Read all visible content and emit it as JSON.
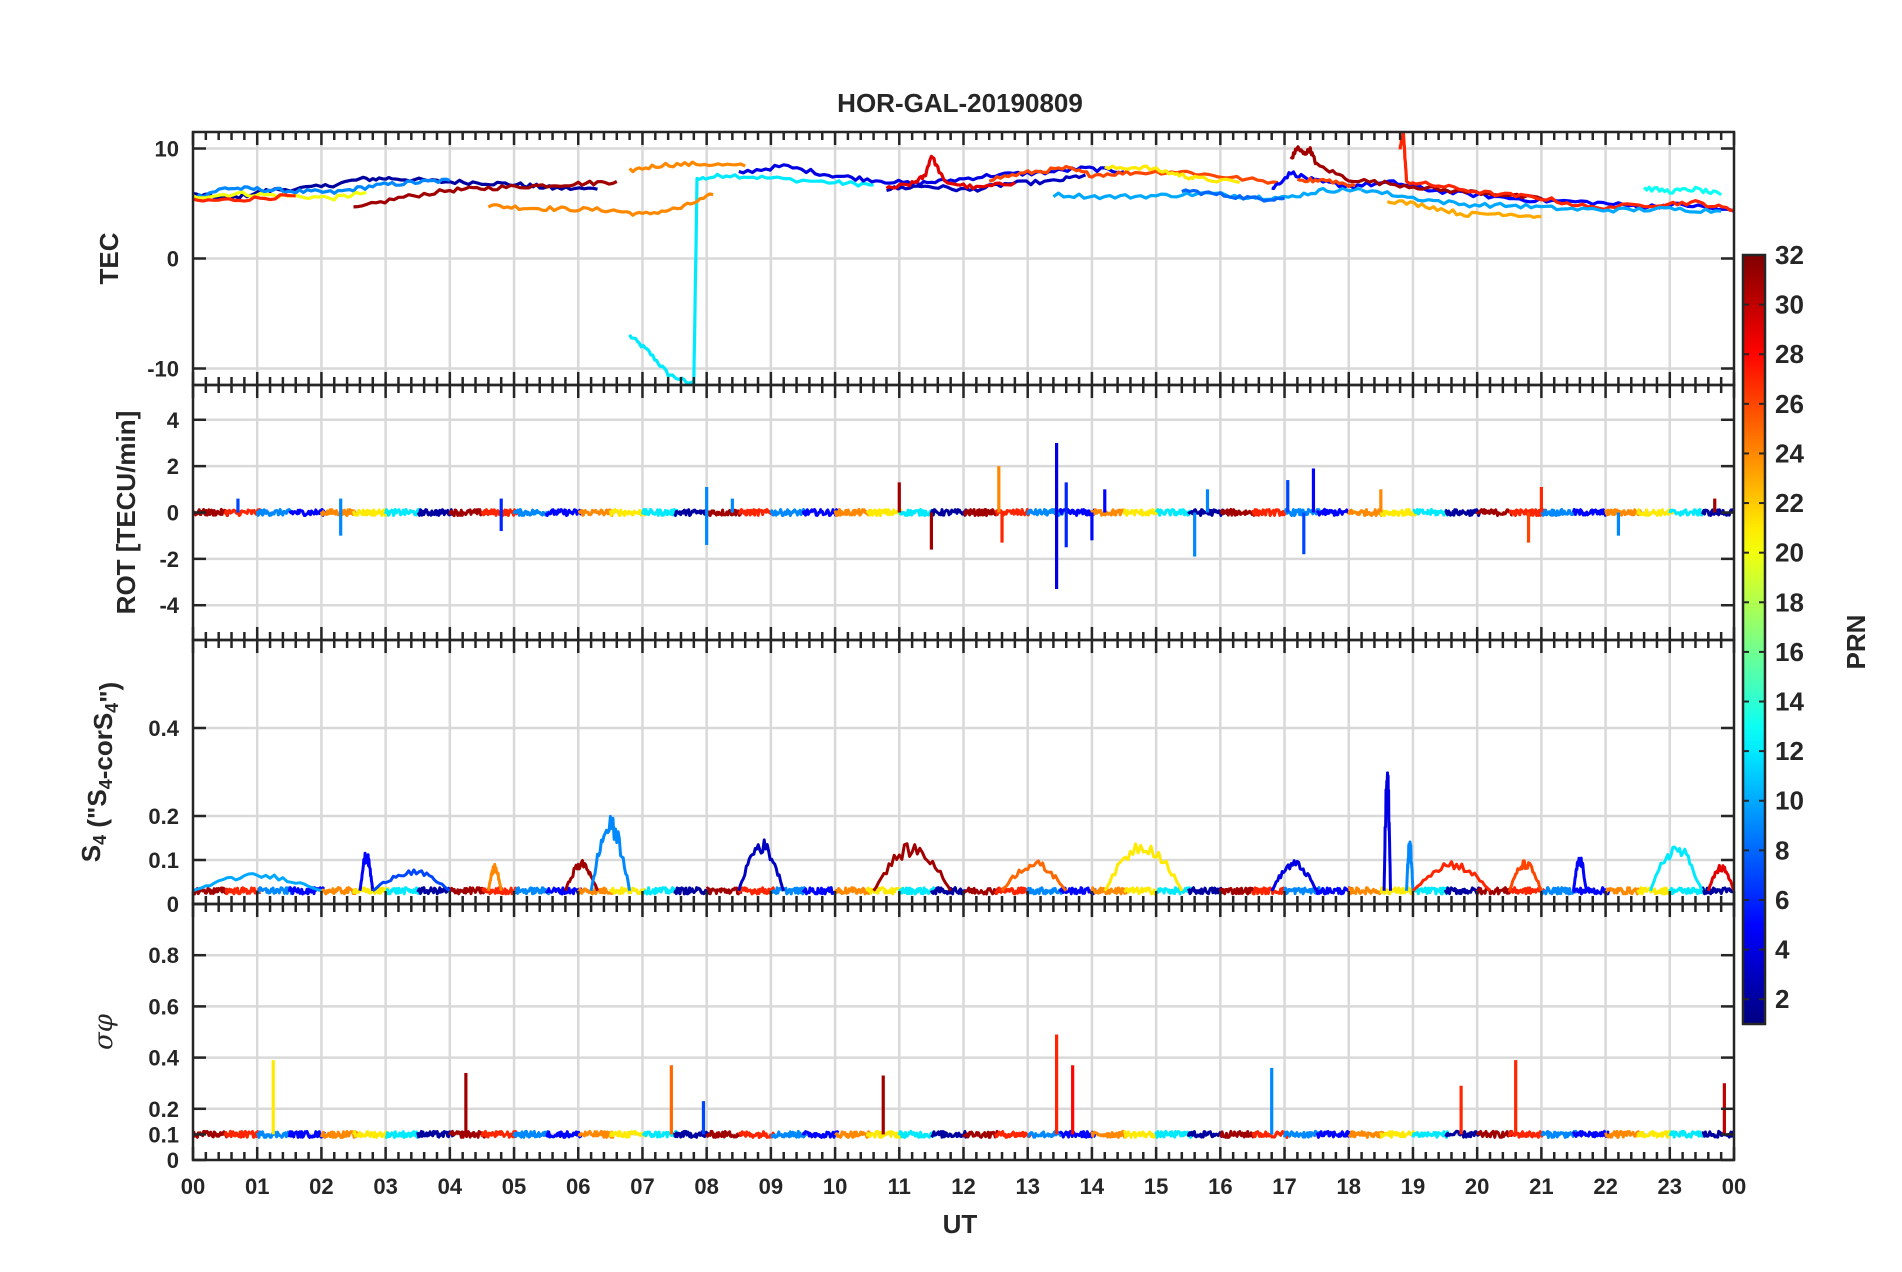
{
  "figure": {
    "title": "HOR-GAL-20190809",
    "xlabel": "UT",
    "x_tick_labels": [
      "00",
      "01",
      "02",
      "03",
      "04",
      "05",
      "06",
      "07",
      "08",
      "09",
      "10",
      "11",
      "12",
      "13",
      "14",
      "15",
      "16",
      "17",
      "18",
      "19",
      "20",
      "21",
      "22",
      "23",
      "00"
    ]
  },
  "colorbar": {
    "label": "PRN",
    "range": [
      1,
      32
    ],
    "ticks": [
      "2",
      "4",
      "6",
      "8",
      "10",
      "12",
      "14",
      "16",
      "18",
      "20",
      "22",
      "24",
      "26",
      "28",
      "30",
      "32"
    ],
    "colormap": "jet"
  },
  "chart_data": [
    {
      "type": "line",
      "panel": "tec",
      "ylabel": "TEC",
      "ylim": [
        -11.5,
        11.5
      ],
      "xlim": [
        0,
        24
      ],
      "y_ticks": [
        -10,
        0,
        10
      ],
      "y_tick_labels": [
        "-10",
        "0",
        "10"
      ],
      "series": [
        {
          "prn": 12,
          "x": [
            6.8,
            7.1,
            7.4,
            7.75,
            7.8,
            7.85,
            8.3,
            9.0,
            10.0,
            10.6
          ],
          "y": [
            -7,
            -8.5,
            -10.5,
            -11.4,
            -11.4,
            7.2,
            7.6,
            7.3,
            6.9,
            6.7
          ]
        },
        {
          "prn": 2,
          "x": [
            0.0,
            0.6,
            1.2,
            2.0,
            2.6,
            3.1,
            3.8,
            4.5,
            5.1,
            5.6,
            6.3
          ],
          "y": [
            5.8,
            5.5,
            6.2,
            6.5,
            7.2,
            7.3,
            7.0,
            6.9,
            6.7,
            6.4,
            6.3
          ]
        },
        {
          "prn": 9,
          "x": [
            0.0,
            0.5,
            1.0,
            1.6,
            2.2,
            2.8,
            3.4,
            4.0
          ],
          "y": [
            5.5,
            6.4,
            6.3,
            6.1,
            6.0,
            6.6,
            6.9,
            7.1
          ]
        },
        {
          "prn": 20,
          "x": [
            0.0,
            0.7,
            1.4,
            2.2,
            2.7
          ],
          "y": [
            5.6,
            5.9,
            5.7,
            5.5,
            6.0
          ]
        },
        {
          "prn": 27,
          "x": [
            0.0,
            0.8,
            1.6
          ],
          "y": [
            5.2,
            5.4,
            5.7
          ]
        },
        {
          "prn": 31,
          "x": [
            2.5,
            3.2,
            4.0,
            4.6,
            5.3,
            6.0,
            6.6
          ],
          "y": [
            4.5,
            5.5,
            6.2,
            6.4,
            6.6,
            6.8,
            7.0
          ]
        },
        {
          "prn": 24,
          "x": [
            4.6,
            5.2,
            5.8,
            6.5,
            7.0,
            7.6,
            8.1
          ],
          "y": [
            4.8,
            4.6,
            4.5,
            4.4,
            4.0,
            4.6,
            5.8
          ]
        },
        {
          "prn": 24,
          "x": [
            6.8,
            7.3,
            7.9,
            8.6
          ],
          "y": [
            8.0,
            8.5,
            8.6,
            8.4
          ]
        },
        {
          "prn": 4,
          "x": [
            8.5,
            9.2,
            9.9,
            10.5,
            11.2,
            11.8,
            12.5,
            13.2,
            13.9,
            14.5
          ],
          "y": [
            7.8,
            8.4,
            7.6,
            7.2,
            6.8,
            7.1,
            7.6,
            7.8,
            8.2,
            7.9
          ]
        },
        {
          "prn": 3,
          "x": [
            10.8,
            11.4,
            12.1,
            12.7,
            13.4,
            13.9
          ],
          "y": [
            6.3,
            6.6,
            6.2,
            6.8,
            7.0,
            7.6
          ]
        },
        {
          "prn": 29,
          "x": [
            10.8,
            11.2,
            11.4,
            11.5,
            11.7,
            12.2,
            12.8
          ],
          "y": [
            6.3,
            6.8,
            7.5,
            9.4,
            7.0,
            6.4,
            6.9
          ]
        },
        {
          "prn": 26,
          "x": [
            12.4,
            13.0,
            13.6,
            14.0,
            14.6,
            15.4,
            16.1,
            16.9
          ],
          "y": [
            7.2,
            7.8,
            8.2,
            7.6,
            7.8,
            7.9,
            7.4,
            6.9
          ]
        },
        {
          "prn": 10,
          "x": [
            13.4,
            14.2,
            15.0,
            15.8,
            16.5,
            17.0,
            17.6,
            18.2
          ],
          "y": [
            5.8,
            5.6,
            5.7,
            5.9,
            5.6,
            5.5,
            6.2,
            6.3
          ]
        },
        {
          "prn": 21,
          "x": [
            14.2,
            14.8,
            15.3,
            15.6,
            16.3
          ],
          "y": [
            8.2,
            8.3,
            7.7,
            7.3,
            6.9
          ]
        },
        {
          "prn": 8,
          "x": [
            15.4,
            16.0,
            16.6,
            17.0
          ],
          "y": [
            6.2,
            5.8,
            5.4,
            5.5
          ]
        },
        {
          "prn": 5,
          "x": [
            16.8,
            17.1,
            17.5,
            18.0,
            18.7,
            19.3,
            20.1,
            20.9,
            21.8,
            22.6,
            23.2,
            24.0
          ],
          "y": [
            6.3,
            7.8,
            7.0,
            6.6,
            6.9,
            6.2,
            5.7,
            5.3,
            5.1,
            4.7,
            4.9,
            4.3
          ]
        },
        {
          "prn": 31,
          "x": [
            17.1,
            17.2,
            17.3,
            17.4,
            17.5,
            18.0,
            18.8,
            19.5,
            20.3,
            21.1
          ],
          "y": [
            9.0,
            10.1,
            9.5,
            9.9,
            8.5,
            7.2,
            6.7,
            6.2,
            5.9,
            5.3
          ]
        },
        {
          "prn": 27,
          "x": [
            18.8,
            18.85,
            18.9,
            19.4,
            20.2,
            21.0,
            21.8,
            22.7,
            23.4,
            24.0
          ],
          "y": [
            10.0,
            11.5,
            7.0,
            6.6,
            5.9,
            5.5,
            4.6,
            4.9,
            5.1,
            4.4
          ]
        },
        {
          "prn": 10,
          "x": [
            18.2,
            19.0,
            19.8,
            20.6,
            21.4,
            22.2,
            23.0,
            23.8
          ],
          "y": [
            6.3,
            5.5,
            4.9,
            4.8,
            4.5,
            4.4,
            4.5,
            4.3
          ]
        },
        {
          "prn": 23,
          "x": [
            18.6,
            19.2,
            19.8,
            20.4,
            21.0
          ],
          "y": [
            5.3,
            4.8,
            4.0,
            4.1,
            3.8
          ]
        },
        {
          "prn": 13,
          "x": [
            22.6,
            23.0,
            23.4,
            23.8
          ],
          "y": [
            6.4,
            6.1,
            6.3,
            5.8
          ]
        },
        {
          "prn": 26,
          "x": [
            17.2,
            17.6,
            18.1
          ],
          "y": [
            7.0,
            7.2,
            6.6
          ]
        }
      ]
    },
    {
      "type": "line",
      "panel": "rot",
      "ylabel": "ROT [TECU/min]",
      "ylim": [
        -5.5,
        5.5
      ],
      "xlim": [
        0,
        24
      ],
      "y_ticks": [
        -4,
        -2,
        0,
        2,
        4
      ],
      "y_tick_labels": [
        "-4",
        "-2",
        "0",
        "2",
        "4"
      ],
      "baseline": 0,
      "spikes": [
        {
          "prn": 7,
          "x": 0.7,
          "y": 0.6
        },
        {
          "prn": 9,
          "x": 2.3,
          "y": -1.0
        },
        {
          "prn": 9,
          "x": 2.3,
          "y": 0.6
        },
        {
          "prn": 6,
          "x": 4.8,
          "y": 0.6
        },
        {
          "prn": 6,
          "x": 4.8,
          "y": -0.8
        },
        {
          "prn": 9,
          "x": 8.0,
          "y": 1.1
        },
        {
          "prn": 9,
          "x": 8.0,
          "y": -1.4
        },
        {
          "prn": 9,
          "x": 8.4,
          "y": 0.6
        },
        {
          "prn": 31,
          "x": 11.0,
          "y": 1.3
        },
        {
          "prn": 31,
          "x": 11.5,
          "y": -1.6
        },
        {
          "prn": 24,
          "x": 12.55,
          "y": 2.0
        },
        {
          "prn": 27,
          "x": 12.6,
          "y": -1.3
        },
        {
          "prn": 4,
          "x": 13.45,
          "y": 3.0
        },
        {
          "prn": 4,
          "x": 13.45,
          "y": -3.3
        },
        {
          "prn": 6,
          "x": 13.6,
          "y": 1.3
        },
        {
          "prn": 6,
          "x": 13.6,
          "y": -1.5
        },
        {
          "prn": 5,
          "x": 14.2,
          "y": 1.0
        },
        {
          "prn": 5,
          "x": 14.0,
          "y": -1.2
        },
        {
          "prn": 9,
          "x": 15.6,
          "y": -1.9
        },
        {
          "prn": 9,
          "x": 15.8,
          "y": 1.0
        },
        {
          "prn": 7,
          "x": 17.05,
          "y": 1.4
        },
        {
          "prn": 7,
          "x": 17.3,
          "y": -1.8
        },
        {
          "prn": 5,
          "x": 17.45,
          "y": 1.9
        },
        {
          "prn": 24,
          "x": 18.5,
          "y": 1.0
        },
        {
          "prn": 26,
          "x": 20.8,
          "y": -1.3
        },
        {
          "prn": 27,
          "x": 21.0,
          "y": 1.1
        },
        {
          "prn": 9,
          "x": 22.2,
          "y": -1.0
        },
        {
          "prn": 31,
          "x": 23.7,
          "y": 0.6
        }
      ]
    },
    {
      "type": "line",
      "panel": "s4",
      "ylabel": "S4 (\"S4-corS4\")",
      "ylim": [
        0,
        0.6
      ],
      "xlim": [
        0,
        24
      ],
      "y_ticks": [
        0,
        0.1,
        0.2,
        0.4
      ],
      "y_tick_labels": [
        "0",
        "0.1",
        "0.2",
        "0.4"
      ],
      "baseline": 0.03,
      "bumps": [
        {
          "prn": 10,
          "x": [
            0.0,
            2.0
          ],
          "peak": 0.07
        },
        {
          "prn": 5,
          "x": [
            2.6,
            2.8
          ],
          "peak": 0.12
        },
        {
          "prn": 7,
          "x": [
            2.8,
            4.0
          ],
          "peak": 0.08
        },
        {
          "prn": 24,
          "x": [
            4.6,
            4.8
          ],
          "peak": 0.09
        },
        {
          "prn": 31,
          "x": [
            5.8,
            6.3
          ],
          "peak": 0.1
        },
        {
          "prn": 9,
          "x": [
            6.2,
            6.8
          ],
          "peak": 0.2
        },
        {
          "prn": 3,
          "x": [
            8.5,
            9.2
          ],
          "peak": 0.15
        },
        {
          "prn": 31,
          "x": [
            10.6,
            11.8
          ],
          "peak": 0.14
        },
        {
          "prn": 25,
          "x": [
            12.6,
            13.6
          ],
          "peak": 0.1
        },
        {
          "prn": 21,
          "x": [
            14.2,
            15.4
          ],
          "peak": 0.15
        },
        {
          "prn": 4,
          "x": [
            16.8,
            17.5
          ],
          "peak": 0.1
        },
        {
          "prn": 4,
          "x": [
            18.55,
            18.65
          ],
          "peak": 0.32
        },
        {
          "prn": 9,
          "x": [
            18.9,
            19.0
          ],
          "peak": 0.15
        },
        {
          "prn": 27,
          "x": [
            19.0,
            20.2
          ],
          "peak": 0.1
        },
        {
          "prn": 26,
          "x": [
            20.5,
            21.0
          ],
          "peak": 0.1
        },
        {
          "prn": 5,
          "x": [
            21.5,
            21.7
          ],
          "peak": 0.11
        },
        {
          "prn": 12,
          "x": [
            22.7,
            23.5
          ],
          "peak": 0.14
        },
        {
          "prn": 29,
          "x": [
            23.6,
            24.0
          ],
          "peak": 0.09
        }
      ]
    },
    {
      "type": "line",
      "panel": "sigma_phi",
      "ylabel": "σφ",
      "ylim": [
        0,
        1.0
      ],
      "xlim": [
        0,
        24
      ],
      "y_ticks": [
        0,
        0.1,
        0.2,
        0.4,
        0.6,
        0.8
      ],
      "y_tick_labels": [
        "0",
        "0.1",
        "0.2",
        "0.4",
        "0.6",
        "0.8"
      ],
      "baseline": 0.1,
      "spikes": [
        {
          "prn": 21,
          "x": 1.25,
          "y": 0.39
        },
        {
          "prn": 31,
          "x": 4.25,
          "y": 0.34
        },
        {
          "prn": 25,
          "x": 7.45,
          "y": 0.37
        },
        {
          "prn": 7,
          "x": 7.95,
          "y": 0.23
        },
        {
          "prn": 31,
          "x": 10.75,
          "y": 0.33
        },
        {
          "prn": 27,
          "x": 13.45,
          "y": 0.49
        },
        {
          "prn": 28,
          "x": 13.7,
          "y": 0.37
        },
        {
          "prn": 9,
          "x": 16.8,
          "y": 0.36
        },
        {
          "prn": 27,
          "x": 19.75,
          "y": 0.29
        },
        {
          "prn": 27,
          "x": 20.6,
          "y": 0.39
        },
        {
          "prn": 30,
          "x": 23.85,
          "y": 0.3
        }
      ]
    }
  ]
}
